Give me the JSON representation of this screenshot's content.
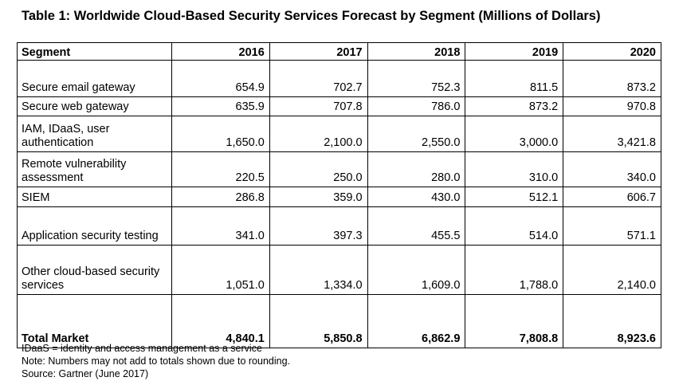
{
  "title": "Table 1: Worldwide Cloud-Based Security Services Forecast by Segment (Millions of Dollars)",
  "table": {
    "header": {
      "segment": "Segment",
      "years": [
        "2016",
        "2017",
        "2018",
        "2019",
        "2020"
      ]
    },
    "rows": [
      {
        "segment": "Secure email gateway",
        "values": [
          "654.9",
          "702.7",
          "752.3",
          "811.5",
          "873.2"
        ]
      },
      {
        "segment": "Secure web gateway",
        "values": [
          "635.9",
          "707.8",
          "786.0",
          "873.2",
          "970.8"
        ]
      },
      {
        "segment": "IAM, IDaaS, user authentication",
        "values": [
          "1,650.0",
          "2,100.0",
          "2,550.0",
          "3,000.0",
          "3,421.8"
        ]
      },
      {
        "segment": "Remote vulnerability assessment",
        "values": [
          "220.5",
          "250.0",
          "280.0",
          "310.0",
          "340.0"
        ]
      },
      {
        "segment": "SIEM",
        "values": [
          "286.8",
          "359.0",
          "430.0",
          "512.1",
          "606.7"
        ]
      },
      {
        "segment": "Application security testing",
        "values": [
          "341.0",
          "397.3",
          "455.5",
          "514.0",
          "571.1"
        ]
      },
      {
        "segment": "Other cloud-based security services",
        "values": [
          "1,051.0",
          "1,334.0",
          "1,609.0",
          "1,788.0",
          "2,140.0"
        ]
      }
    ],
    "total": {
      "segment": "Total Market",
      "values": [
        "4,840.1",
        "5,850.8",
        "6,862.9",
        "7,808.8",
        "8,923.6"
      ]
    }
  },
  "notes": [
    "IDaaS = identity and access management as a service",
    "Note: Numbers may not add to totals shown due to rounding.",
    "Source: Gartner (June 2017)"
  ]
}
